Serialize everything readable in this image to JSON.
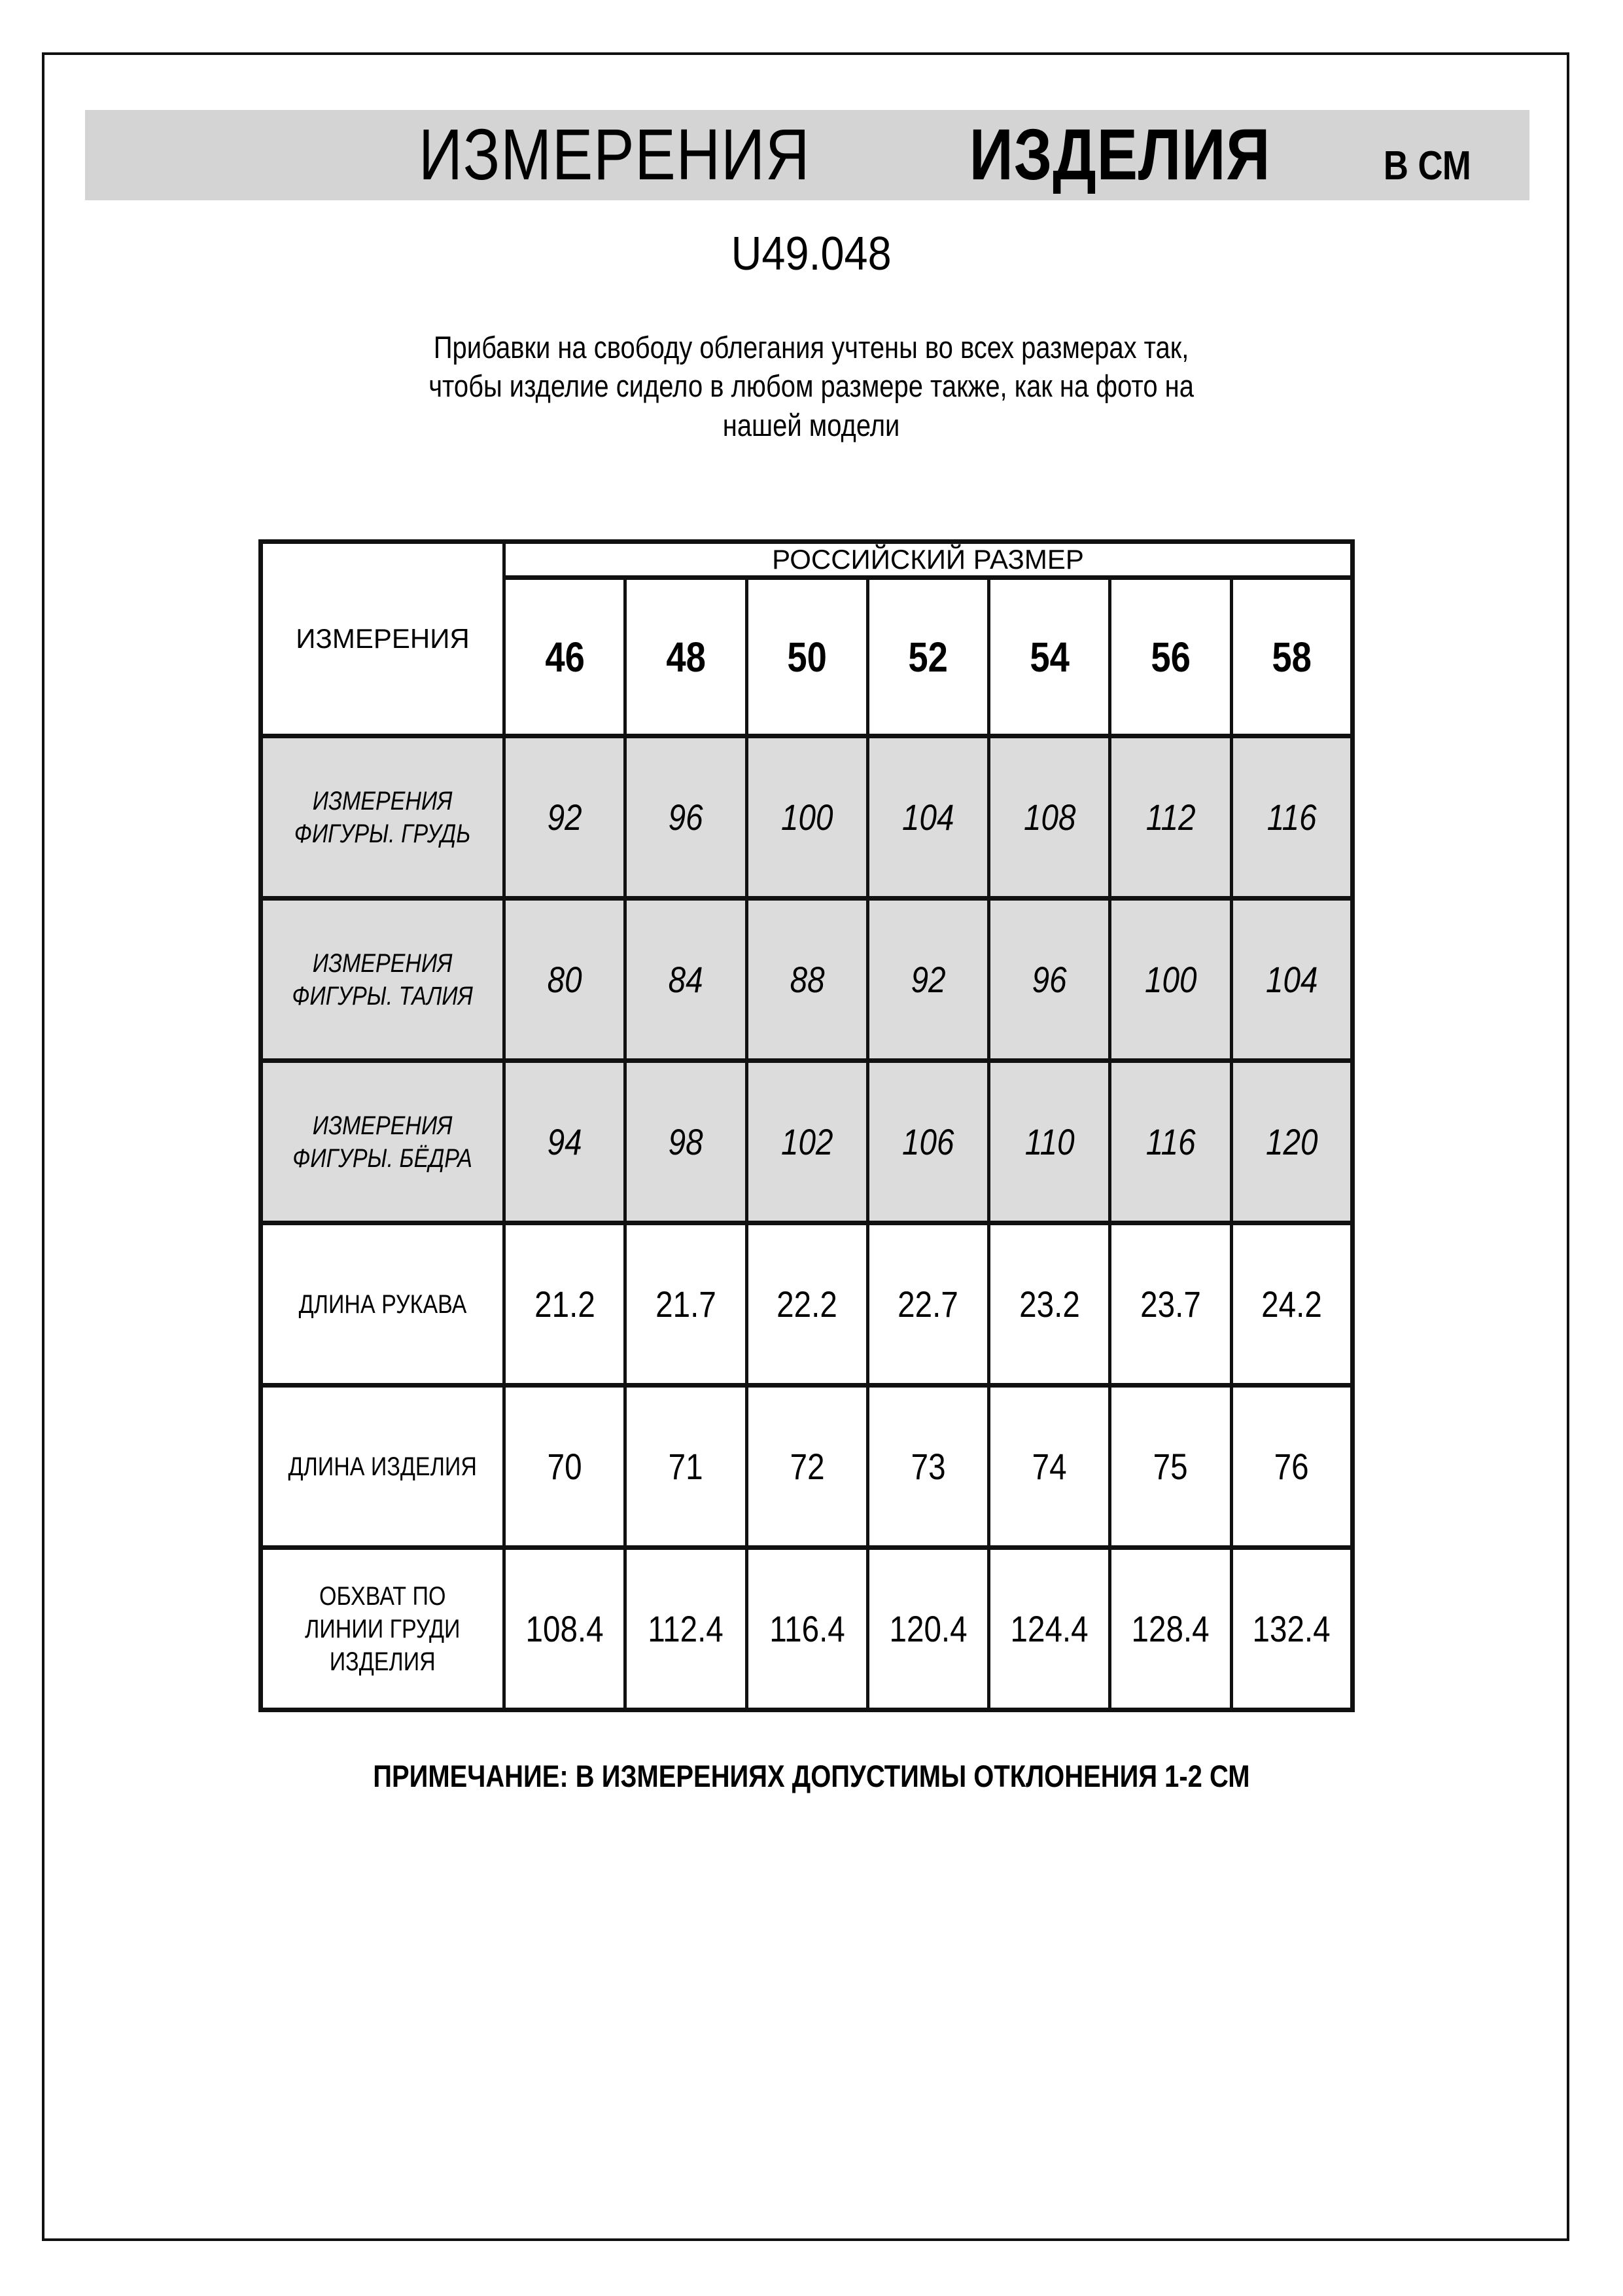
{
  "header": {
    "title_main": "ИЗМЕРЕНИЯ",
    "title_secondary": "ИЗДЕЛИЯ",
    "title_units": "В СМ"
  },
  "product_code": "U49.048",
  "description": "Прибавки на свободу облегания учтены во всех размерах так,\nчтобы изделие сидело в любом размере также, как на фото на\nнашей модели",
  "table": {
    "measurements_header": "ИЗМЕРЕНИЯ",
    "size_group_header": "РОССИЙСКИЙ РАЗМЕР",
    "sizes": [
      "46",
      "48",
      "50",
      "52",
      "54",
      "56",
      "58"
    ],
    "rows": [
      {
        "label": "ИЗМЕРЕНИЯ\nФИГУРЫ. ГРУДЬ",
        "values": [
          "92",
          "96",
          "100",
          "104",
          "108",
          "112",
          "116"
        ]
      },
      {
        "label": "ИЗМЕРЕНИЯ\nФИГУРЫ. ТАЛИЯ",
        "values": [
          "80",
          "84",
          "88",
          "92",
          "96",
          "100",
          "104"
        ]
      },
      {
        "label": "ИЗМЕРЕНИЯ\nФИГУРЫ. БЁДРА",
        "values": [
          "94",
          "98",
          "102",
          "106",
          "110",
          "116",
          "120"
        ]
      },
      {
        "label": "ДЛИНА РУКАВА",
        "values": [
          "21.2",
          "21.7",
          "22.2",
          "22.7",
          "23.2",
          "23.7",
          "24.2"
        ]
      },
      {
        "label": "ДЛИНА ИЗДЕЛИЯ",
        "values": [
          "70",
          "71",
          "72",
          "73",
          "74",
          "75",
          "76"
        ]
      },
      {
        "label": "ОБХВАТ ПО\nЛИНИИ ГРУДИ\nИЗДЕЛИЯ",
        "values": [
          "108.4",
          "112.4",
          "116.4",
          "120.4",
          "124.4",
          "128.4",
          "132.4"
        ]
      }
    ]
  },
  "note": "ПРИМЕЧАНИЕ: В ИЗМЕРЕНИЯХ ДОПУСТИМЫ ОТКЛОНЕНИЯ 1-2 СМ",
  "colors": {
    "band-gray": "#d4d4d4",
    "row-gray": "#dcdcdc",
    "line-black": "#111111"
  }
}
